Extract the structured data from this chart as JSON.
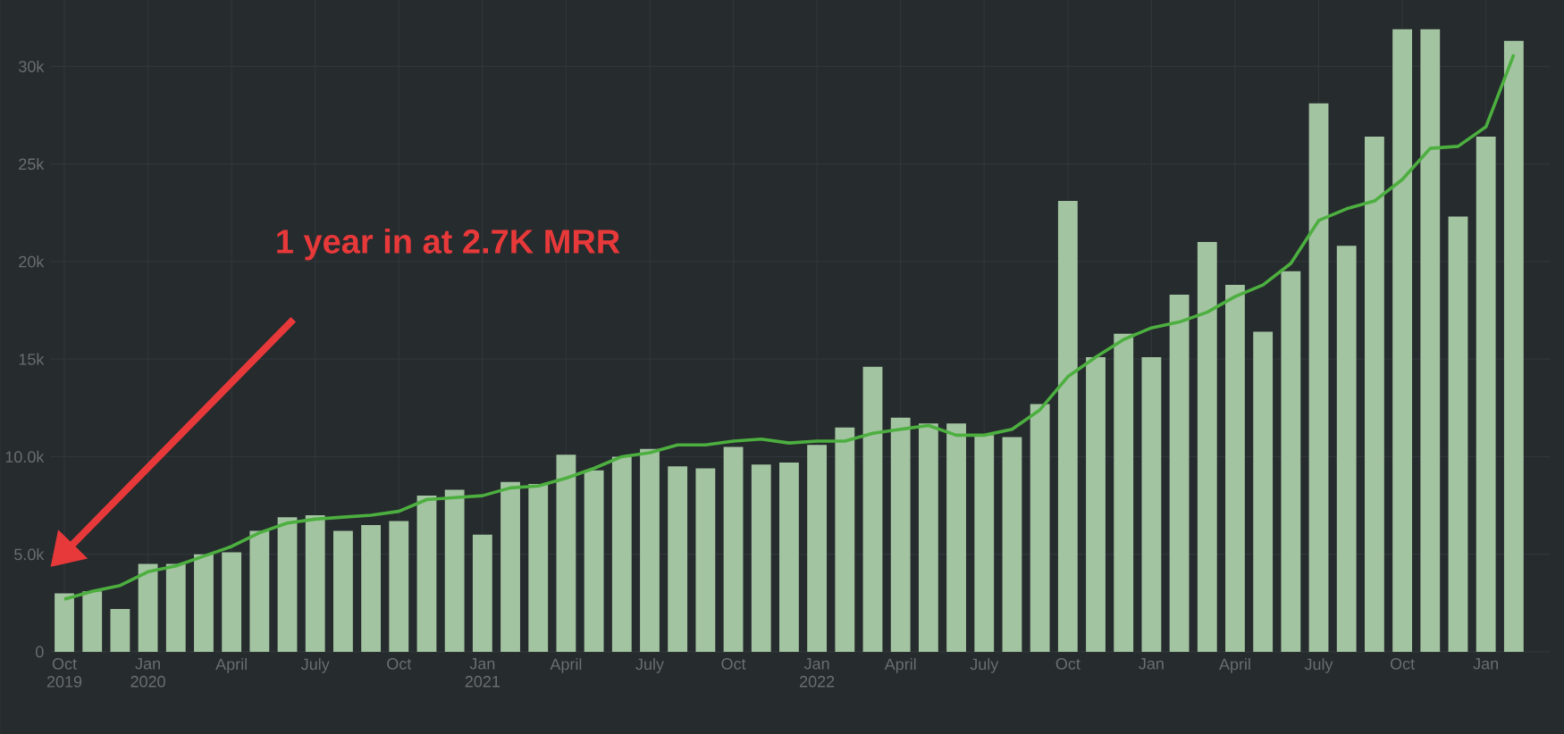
{
  "chart_data": {
    "type": "bar",
    "categories": [
      "Oct 2019",
      null,
      null,
      "Jan 2020",
      null,
      null,
      "April",
      null,
      null,
      "July",
      null,
      null,
      "Oct",
      null,
      null,
      "Jan 2021",
      null,
      null,
      "April",
      null,
      null,
      "July",
      null,
      null,
      "Oct",
      null,
      null,
      "Jan 2022",
      null,
      null,
      "April",
      null,
      null,
      "July",
      null,
      null,
      "Oct",
      null,
      null,
      "Jan",
      null,
      null,
      "April",
      null,
      null,
      "July",
      null,
      null,
      "Oct",
      null,
      null,
      "Jan",
      null
    ],
    "series": [
      {
        "color": "#a3c4a1",
        "values": [
          3000,
          3100,
          2200,
          4500,
          4500,
          5000,
          5100,
          6200,
          6900,
          7000,
          6200,
          6500,
          6700,
          8000,
          8300,
          6000,
          8700,
          8600,
          10100,
          9300,
          10000,
          10400,
          9500,
          9400,
          10500,
          9600,
          9700,
          10600,
          11500,
          14600,
          12000,
          11700,
          11700,
          11100,
          11000,
          12700,
          23100,
          15100,
          16300,
          15100,
          18300,
          21000,
          18800,
          16400,
          19500,
          28100,
          20800,
          26400,
          31900,
          31900,
          22300,
          26400,
          31300
        ]
      },
      {
        "type": "line",
        "color": "#4caf3f",
        "values": [
          2700,
          3100,
          3400,
          4100,
          4400,
          4900,
          5400,
          6100,
          6600,
          6800,
          6900,
          7000,
          7200,
          7800,
          7900,
          8000,
          8400,
          8500,
          8900,
          9400,
          10000,
          10200,
          10600,
          10600,
          10800,
          10900,
          10700,
          10800,
          10800,
          11200,
          11400,
          11600,
          11100,
          11100,
          11400,
          12400,
          14100,
          15100,
          16000,
          16600,
          16900,
          17400,
          18200,
          18800,
          19900,
          22100,
          22700,
          23100,
          24200,
          25800,
          25900,
          26900,
          30600
        ]
      }
    ],
    "ylim": [
      0,
      33400
    ],
    "yticks": [
      0,
      {
        "value": 5000,
        "label": "5.0k"
      },
      {
        "value": 10000,
        "label": "10.0k"
      },
      {
        "value": 15000,
        "label": "15k"
      },
      {
        "value": 20000,
        "label": "20k"
      },
      {
        "value": 25000,
        "label": "25k"
      },
      {
        "value": 30000,
        "label": "30k"
      }
    ],
    "grid": true,
    "annotations": [
      "1 year in at 2.7K MRR"
    ]
  }
}
